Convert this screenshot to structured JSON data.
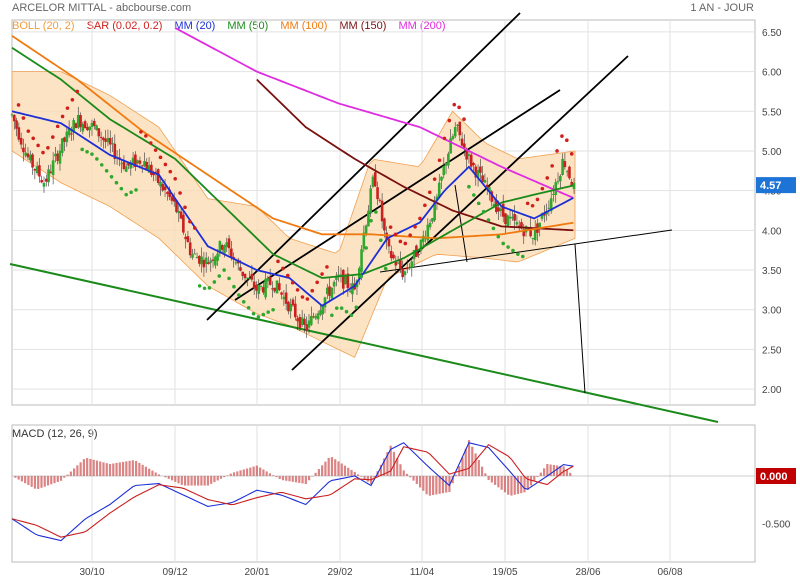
{
  "header": {
    "title": "ARCELOR MITTAL - abcbourse.com",
    "period": "1 AN - JOUR"
  },
  "legend": [
    {
      "key": "boll",
      "label": "BOLL (20, 2)",
      "color": "#f39c3a"
    },
    {
      "key": "sar",
      "label": "SAR (0.02, 0.2)",
      "color": "#d0201c"
    },
    {
      "key": "mm20",
      "label": "MM (20)",
      "color": "#1c2fd6"
    },
    {
      "key": "mm50",
      "label": "MM (50)",
      "color": "#1a8a1a"
    },
    {
      "key": "mm100",
      "label": "MM (100)",
      "color": "#f07a10"
    },
    {
      "key": "mm150",
      "label": "MM (150)",
      "color": "#7a1010"
    },
    {
      "key": "mm200",
      "label": "MM (200)",
      "color": "#e02ce0"
    }
  ],
  "macd_label": "MACD (12, 26, 9)",
  "chart_data": [
    {
      "type": "candlestick",
      "title": "ARCELOR MITTAL - abcbourse.com",
      "price_ticks": [
        "6.50",
        "6.00",
        "5.50",
        "5.00",
        "4.50",
        "4.00",
        "3.50",
        "3.00",
        "2.50",
        "2.00"
      ],
      "date_ticks": [
        "30/10",
        "09/12",
        "20/01",
        "29/02",
        "11/04",
        "19/05",
        "28/06",
        "06/08"
      ],
      "ylim": [
        1.8,
        6.65
      ],
      "last_price": "4.57",
      "price_path_approx": [
        [
          0,
          5.45
        ],
        [
          10,
          4.9
        ],
        [
          20,
          4.6
        ],
        [
          30,
          5.05
        ],
        [
          40,
          5.4
        ],
        [
          50,
          5.3
        ],
        [
          60,
          5.05
        ],
        [
          70,
          4.8
        ],
        [
          80,
          4.9
        ],
        [
          90,
          4.6
        ],
        [
          100,
          4.3
        ],
        [
          110,
          3.7
        ],
        [
          120,
          3.6
        ],
        [
          130,
          3.85
        ],
        [
          140,
          3.5
        ],
        [
          150,
          3.25
        ],
        [
          160,
          3.35
        ],
        [
          170,
          3.05
        ],
        [
          180,
          2.75
        ],
        [
          190,
          3.1
        ],
        [
          200,
          3.4
        ],
        [
          210,
          3.25
        ],
        [
          215,
          3.9
        ],
        [
          222,
          4.7
        ],
        [
          230,
          3.75
        ],
        [
          240,
          3.45
        ],
        [
          250,
          3.8
        ],
        [
          260,
          4.35
        ],
        [
          266,
          4.9
        ],
        [
          272,
          5.3
        ],
        [
          280,
          4.9
        ],
        [
          290,
          4.55
        ],
        [
          300,
          4.2
        ],
        [
          310,
          4.05
        ],
        [
          320,
          3.95
        ],
        [
          330,
          4.4
        ],
        [
          338,
          4.9
        ],
        [
          345,
          4.5
        ]
      ],
      "mm20_approx": [
        [
          0,
          5.5
        ],
        [
          30,
          5.35
        ],
        [
          60,
          4.95
        ],
        [
          90,
          4.7
        ],
        [
          120,
          3.8
        ],
        [
          150,
          3.5
        ],
        [
          170,
          3.4
        ],
        [
          190,
          3.05
        ],
        [
          210,
          3.3
        ],
        [
          230,
          3.9
        ],
        [
          250,
          4.1
        ],
        [
          265,
          4.5
        ],
        [
          280,
          4.8
        ],
        [
          300,
          4.3
        ],
        [
          320,
          4.15
        ],
        [
          345,
          4.42
        ]
      ],
      "mm50_approx": [
        [
          0,
          6.3
        ],
        [
          30,
          5.9
        ],
        [
          60,
          5.4
        ],
        [
          100,
          4.9
        ],
        [
          130,
          4.3
        ],
        [
          160,
          3.7
        ],
        [
          190,
          3.4
        ],
        [
          215,
          3.45
        ],
        [
          240,
          3.65
        ],
        [
          270,
          4.0
        ],
        [
          300,
          4.35
        ],
        [
          320,
          4.45
        ],
        [
          345,
          4.57
        ]
      ],
      "mm100_approx": [
        [
          0,
          6.45
        ],
        [
          40,
          5.9
        ],
        [
          80,
          5.25
        ],
        [
          120,
          4.7
        ],
        [
          160,
          4.15
        ],
        [
          190,
          3.95
        ],
        [
          220,
          3.95
        ],
        [
          260,
          3.9
        ],
        [
          300,
          3.95
        ],
        [
          345,
          4.1
        ]
      ],
      "mm150_approx": [
        [
          150,
          5.9
        ],
        [
          180,
          5.3
        ],
        [
          210,
          4.9
        ],
        [
          240,
          4.55
        ],
        [
          270,
          4.25
        ],
        [
          300,
          4.05
        ],
        [
          345,
          4.0
        ]
      ],
      "mm200_approx": [
        [
          100,
          6.55
        ],
        [
          150,
          6.0
        ],
        [
          200,
          5.6
        ],
        [
          250,
          5.3
        ],
        [
          280,
          5.0
        ],
        [
          300,
          4.8
        ],
        [
          345,
          4.4
        ]
      ],
      "boll_upper_approx": [
        [
          0,
          6.0
        ],
        [
          30,
          6.0
        ],
        [
          60,
          5.7
        ],
        [
          90,
          5.3
        ],
        [
          120,
          4.4
        ],
        [
          150,
          4.3
        ],
        [
          170,
          3.9
        ],
        [
          200,
          3.7
        ],
        [
          220,
          4.9
        ],
        [
          250,
          4.8
        ],
        [
          270,
          5.5
        ],
        [
          290,
          5.1
        ],
        [
          310,
          4.9
        ],
        [
          345,
          5.0
        ]
      ],
      "boll_lower_approx": [
        [
          0,
          5.0
        ],
        [
          30,
          4.6
        ],
        [
          60,
          4.3
        ],
        [
          90,
          3.9
        ],
        [
          120,
          3.3
        ],
        [
          150,
          2.95
        ],
        [
          170,
          2.8
        ],
        [
          190,
          2.6
        ],
        [
          210,
          2.4
        ],
        [
          230,
          3.4
        ],
        [
          260,
          3.7
        ],
        [
          290,
          3.65
        ],
        [
          310,
          3.6
        ],
        [
          345,
          3.9
        ]
      ]
    },
    {
      "type": "line",
      "title": "MACD (12, 26, 9)",
      "y_ticks": [
        "0.000",
        "-0.500"
      ],
      "last_value": "0.000"
    }
  ]
}
